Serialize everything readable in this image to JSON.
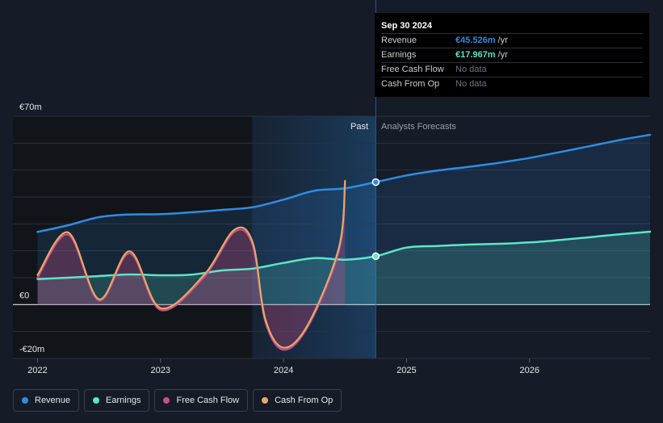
{
  "tooltip": {
    "date": "Sep 30 2024",
    "rows": [
      {
        "label": "Revenue",
        "value": "€45.526m",
        "unit": "/yr",
        "color": "#2e8de3"
      },
      {
        "label": "Earnings",
        "value": "€17.967m",
        "unit": "/yr",
        "color": "#5de6c7"
      },
      {
        "label": "Free Cash Flow",
        "value": "No data",
        "unit": ""
      },
      {
        "label": "Cash From Op",
        "value": "No data",
        "unit": ""
      }
    ]
  },
  "legend": [
    {
      "label": "Revenue",
      "color": "#2e8de3"
    },
    {
      "label": "Earnings",
      "color": "#5de6c7"
    },
    {
      "label": "Free Cash Flow",
      "color": "#c84e89"
    },
    {
      "label": "Cash From Op",
      "color": "#e8a865"
    }
  ],
  "chart_data": {
    "type": "line",
    "y_tick_labels": [
      "€70m",
      "€0",
      "-€20m"
    ],
    "y_ticks": [
      70,
      0,
      -20
    ],
    "ylim": [
      -20,
      70
    ],
    "xlim": [
      2021.8,
      2026.98
    ],
    "x_tick_labels": [
      "2022",
      "2023",
      "2024",
      "2025",
      "2026"
    ],
    "x_ticks": [
      2022,
      2023,
      2024,
      2025,
      2026
    ],
    "past_label": "Past",
    "forecast_label": "Analysts Forecasts",
    "past_start": 2023.74,
    "forecast_start": 2024.75,
    "grid": true,
    "series": [
      {
        "name": "Revenue",
        "color": "#2e8de3",
        "area": true,
        "points": [
          [
            2022.0,
            27
          ],
          [
            2022.25,
            29.5
          ],
          [
            2022.5,
            32.5
          ],
          [
            2022.75,
            33.5
          ],
          [
            2023.0,
            33.6
          ],
          [
            2023.25,
            34.3
          ],
          [
            2023.5,
            35.2
          ],
          [
            2023.75,
            36.2
          ],
          [
            2024.0,
            39
          ],
          [
            2024.25,
            42.3
          ],
          [
            2024.5,
            43.2
          ],
          [
            2024.75,
            45.53
          ],
          [
            2025.0,
            48
          ],
          [
            2025.25,
            49.8
          ],
          [
            2025.5,
            51.2
          ],
          [
            2025.75,
            52.7
          ],
          [
            2026.0,
            54.5
          ],
          [
            2026.25,
            56.7
          ],
          [
            2026.5,
            59
          ],
          [
            2026.75,
            61.3
          ],
          [
            2026.98,
            63.1
          ]
        ],
        "marker": [
          2024.75,
          45.53
        ]
      },
      {
        "name": "Earnings",
        "color": "#5de6c7",
        "area": true,
        "points": [
          [
            2022.0,
            9.5
          ],
          [
            2022.25,
            10
          ],
          [
            2022.5,
            10.6
          ],
          [
            2022.75,
            11.2
          ],
          [
            2023.0,
            10.9
          ],
          [
            2023.25,
            11.1
          ],
          [
            2023.5,
            12.7
          ],
          [
            2023.75,
            13.4
          ],
          [
            2024.0,
            15.5
          ],
          [
            2024.25,
            17.3
          ],
          [
            2024.5,
            16.7
          ],
          [
            2024.75,
            17.97
          ],
          [
            2025.0,
            21.2
          ],
          [
            2025.25,
            21.8
          ],
          [
            2025.5,
            22.3
          ],
          [
            2025.75,
            22.6
          ],
          [
            2026.0,
            23.1
          ],
          [
            2026.25,
            24
          ],
          [
            2026.5,
            25.1
          ],
          [
            2026.75,
            26.2
          ],
          [
            2026.98,
            27.1
          ]
        ],
        "marker": [
          2024.75,
          17.97
        ]
      },
      {
        "name": "Free Cash Flow",
        "color": "#c84e89",
        "area": true,
        "points": [
          [
            2022.0,
            10
          ],
          [
            2022.25,
            26
          ],
          [
            2022.5,
            1.5
          ],
          [
            2022.75,
            19
          ],
          [
            2023.0,
            -2
          ],
          [
            2023.35,
            10
          ],
          [
            2023.6,
            27
          ],
          [
            2023.75,
            22
          ],
          [
            2023.85,
            -6
          ],
          [
            2024.0,
            -16.8
          ],
          [
            2024.2,
            -8
          ],
          [
            2024.45,
            20
          ],
          [
            2024.5,
            45
          ]
        ]
      },
      {
        "name": "Cash From Op",
        "color": "#e8a865",
        "area": false,
        "points": [
          [
            2022.0,
            11
          ],
          [
            2022.25,
            26.8
          ],
          [
            2022.5,
            2
          ],
          [
            2022.75,
            19.8
          ],
          [
            2023.0,
            -1.3
          ],
          [
            2023.35,
            10.8
          ],
          [
            2023.6,
            27.8
          ],
          [
            2023.75,
            23
          ],
          [
            2023.85,
            -5
          ],
          [
            2024.0,
            -16
          ],
          [
            2024.2,
            -7.3
          ],
          [
            2024.45,
            21
          ],
          [
            2024.5,
            46
          ]
        ]
      }
    ]
  }
}
